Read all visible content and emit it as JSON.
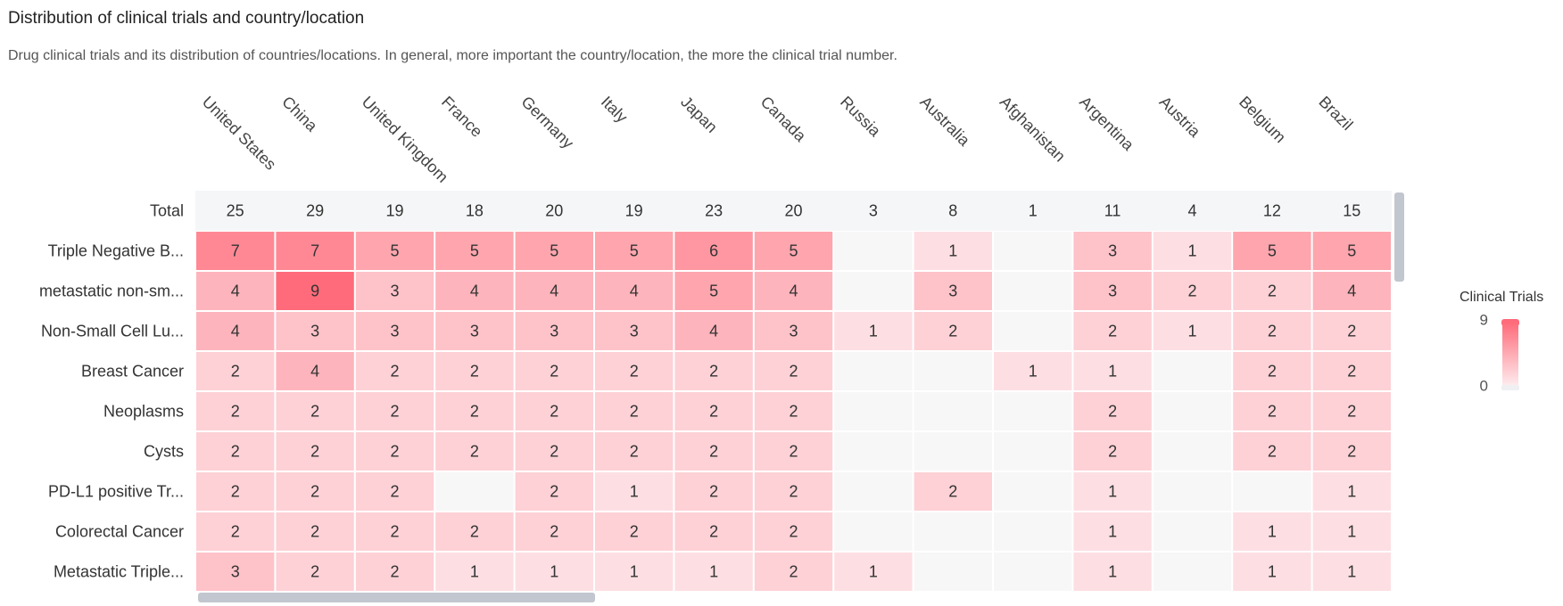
{
  "header": {
    "title": "Distribution of clinical trials and country/location",
    "subtitle": "Drug clinical trials and its distribution of countries/locations. In general, more important the country/location, the more the clinical trial number."
  },
  "chart_data": {
    "type": "heatmap",
    "x": [
      "United States",
      "China",
      "United Kingdom",
      "France",
      "Germany",
      "Italy",
      "Japan",
      "Canada",
      "Russia",
      "Australia",
      "Afghanistan",
      "Argentina",
      "Austria",
      "Belgium",
      "Brazil"
    ],
    "total": {
      "label": "Total",
      "values": [
        25,
        29,
        19,
        18,
        20,
        19,
        23,
        20,
        3,
        8,
        1,
        11,
        4,
        12,
        15
      ]
    },
    "y": [
      "Triple Negative B...",
      "metastatic non-sm...",
      "Non-Small Cell Lu...",
      "Breast Cancer",
      "Neoplasms",
      "Cysts",
      "PD-L1 positive Tr...",
      "Colorectal Cancer",
      "Metastatic Triple..."
    ],
    "values": [
      [
        7,
        7,
        5,
        5,
        5,
        5,
        6,
        5,
        null,
        1,
        null,
        3,
        1,
        5,
        5
      ],
      [
        4,
        9,
        3,
        4,
        4,
        4,
        5,
        4,
        null,
        3,
        null,
        3,
        2,
        2,
        4
      ],
      [
        4,
        3,
        3,
        3,
        3,
        3,
        4,
        3,
        1,
        2,
        null,
        2,
        1,
        2,
        2
      ],
      [
        2,
        4,
        2,
        2,
        2,
        2,
        2,
        2,
        null,
        null,
        1,
        1,
        null,
        2,
        2
      ],
      [
        2,
        2,
        2,
        2,
        2,
        2,
        2,
        2,
        null,
        null,
        null,
        2,
        null,
        2,
        2
      ],
      [
        2,
        2,
        2,
        2,
        2,
        2,
        2,
        2,
        null,
        null,
        null,
        2,
        null,
        2,
        2
      ],
      [
        2,
        2,
        2,
        null,
        2,
        1,
        2,
        2,
        null,
        2,
        null,
        1,
        null,
        null,
        1
      ],
      [
        2,
        2,
        2,
        2,
        2,
        2,
        2,
        2,
        null,
        null,
        null,
        1,
        null,
        1,
        1
      ],
      [
        3,
        2,
        2,
        1,
        1,
        1,
        1,
        2,
        1,
        null,
        null,
        1,
        null,
        1,
        1
      ]
    ],
    "legend": {
      "title": "Clinical Trials",
      "min": 0,
      "max": 9,
      "placement": "right"
    },
    "colors": {
      "low": "#fdeef0",
      "high": "#ff6b7a",
      "empty": "#f7f7f8",
      "total_bg": "#f5f6f8"
    }
  }
}
